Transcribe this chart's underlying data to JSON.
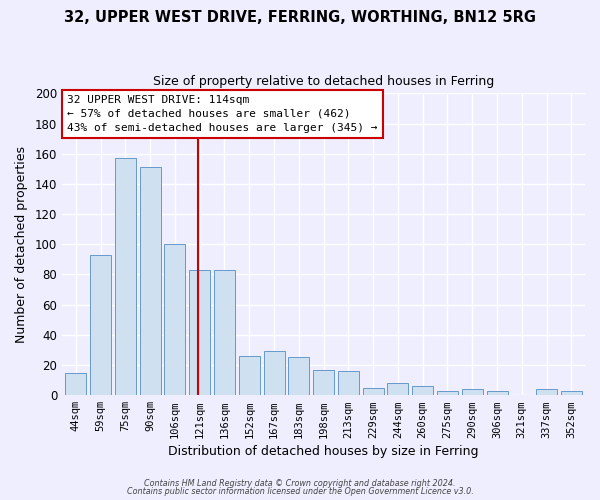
{
  "title": "32, UPPER WEST DRIVE, FERRING, WORTHING, BN12 5RG",
  "subtitle": "Size of property relative to detached houses in Ferring",
  "xlabel": "Distribution of detached houses by size in Ferring",
  "ylabel": "Number of detached properties",
  "categories": [
    "44sqm",
    "59sqm",
    "75sqm",
    "90sqm",
    "106sqm",
    "121sqm",
    "136sqm",
    "152sqm",
    "167sqm",
    "183sqm",
    "198sqm",
    "213sqm",
    "229sqm",
    "244sqm",
    "260sqm",
    "275sqm",
    "290sqm",
    "306sqm",
    "321sqm",
    "337sqm",
    "352sqm"
  ],
  "values": [
    15,
    93,
    157,
    151,
    100,
    83,
    83,
    26,
    29,
    25,
    17,
    16,
    5,
    8,
    6,
    3,
    4,
    3,
    0,
    4,
    3
  ],
  "bar_color": "#cfe0f0",
  "bar_edge_color": "#6699cc",
  "vline_x": 4.93,
  "vline_color": "#cc0000",
  "annotation_text": "32 UPPER WEST DRIVE: 114sqm\n← 57% of detached houses are smaller (462)\n43% of semi-detached houses are larger (345) →",
  "annotation_box_color": "white",
  "annotation_box_edge_color": "#cc0000",
  "ylim": [
    0,
    200
  ],
  "yticks": [
    0,
    20,
    40,
    60,
    80,
    100,
    120,
    140,
    160,
    180,
    200
  ],
  "footer_line1": "Contains HM Land Registry data © Crown copyright and database right 2024.",
  "footer_line2": "Contains public sector information licensed under the Open Government Licence v3.0.",
  "background_color": "#eeeeff",
  "grid_color": "#ffffff",
  "title_fontsize": 10.5,
  "subtitle_fontsize": 9
}
